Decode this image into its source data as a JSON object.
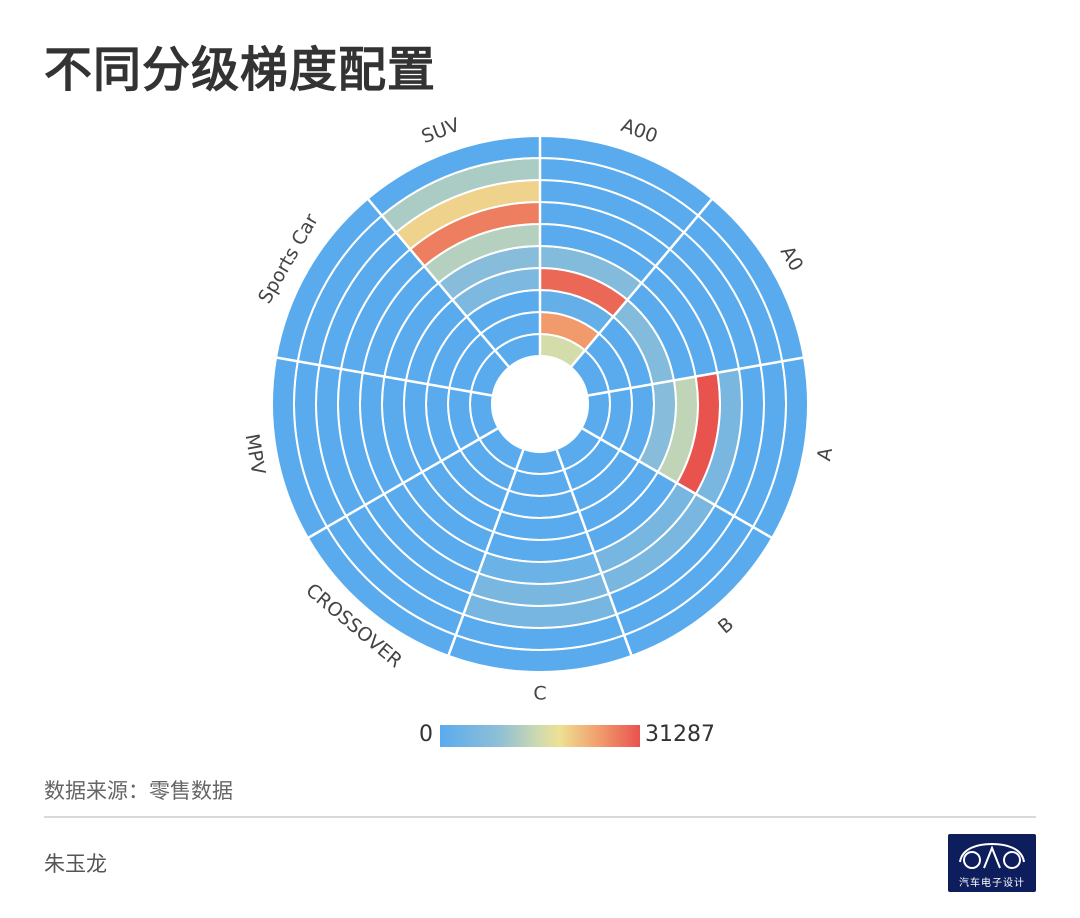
{
  "title": "不同分级梯度配置",
  "source": "数据来源：零售数据",
  "author": "朱玉龙",
  "logo": {
    "text": "汽车电子设计",
    "icon": "car-outline-icon"
  },
  "colors": {
    "scale": [
      "#5aabee",
      "#8fc0d6",
      "#d1dbad",
      "#eee093",
      "#f19b6c",
      "#e8534e"
    ],
    "ring_divider": "#ffffff"
  },
  "chart_data": {
    "type": "heatmap",
    "layout": "polar",
    "title": "不同分级梯度配置",
    "categories": [
      "A00",
      "A0",
      "A",
      "B",
      "C",
      "CROSSOVER",
      "MPV",
      "Sports Car",
      "SUV"
    ],
    "rings": 10,
    "ring_order": "inner-to-outer",
    "visual_map": {
      "min": 0,
      "max": 31287,
      "min_label": "0",
      "max_label": "31287"
    },
    "values": [
      [
        16000,
        25000,
        2000,
        29500,
        7000,
        0,
        0,
        0,
        0,
        0
      ],
      [
        0,
        0,
        0,
        7000,
        0,
        0,
        0,
        0,
        0,
        0
      ],
      [
        0,
        0,
        0,
        8000,
        14000,
        31287,
        5500,
        0,
        0,
        0
      ],
      [
        0,
        0,
        0,
        0,
        0,
        5000,
        5500,
        0,
        0,
        0
      ],
      [
        0,
        0,
        0,
        0,
        0,
        3000,
        5500,
        5000,
        0,
        0
      ],
      [
        0,
        0,
        0,
        0,
        0,
        0,
        0,
        0,
        0,
        0
      ],
      [
        0,
        0,
        0,
        0,
        0,
        0,
        0,
        0,
        0,
        0
      ],
      [
        0,
        0,
        0,
        0,
        0,
        0,
        0,
        0,
        0,
        0
      ],
      [
        0,
        0,
        0,
        6000,
        8000,
        13000,
        27500,
        20000,
        12000,
        0
      ]
    ]
  }
}
